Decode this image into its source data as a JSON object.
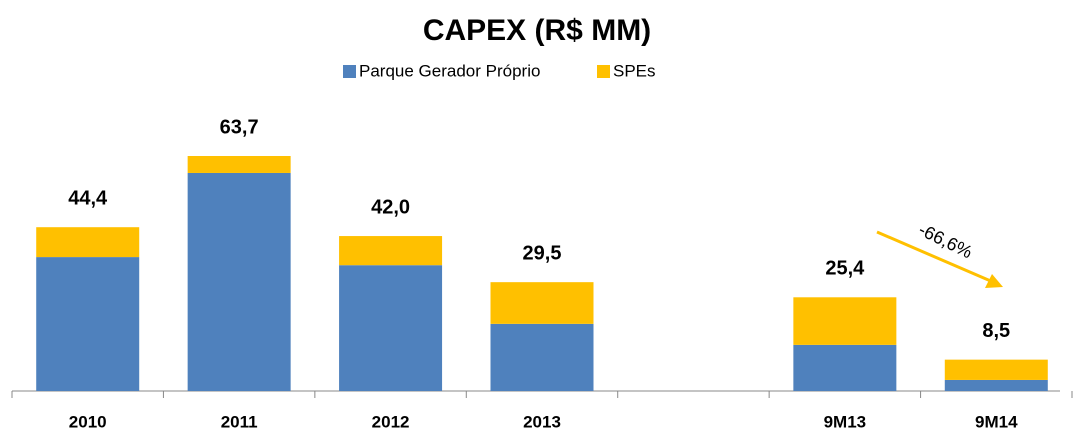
{
  "chart_data": {
    "type": "bar",
    "stacked": true,
    "title": "CAPEX (R$ MM)",
    "categories": [
      "2010",
      "2011",
      "2012",
      "2013",
      null,
      "9M13",
      "9M14"
    ],
    "series": [
      {
        "name": "Parque Gerador Próprio",
        "color": "#4f81bd",
        "values": [
          36.3,
          59.1,
          34.1,
          18.2,
          null,
          12.5,
          3.0
        ]
      },
      {
        "name": "SPEs",
        "color": "#ffc000",
        "values": [
          8.1,
          4.6,
          7.9,
          11.3,
          null,
          12.9,
          5.5
        ]
      }
    ],
    "totals": [
      44.4,
      63.7,
      42.0,
      29.5,
      null,
      25.4,
      8.5
    ],
    "total_labels": [
      "44,4",
      "63,7",
      "42,0",
      "29,5",
      null,
      "25,4",
      "8,5"
    ],
    "annotation": "-66,6%",
    "legend": "top"
  }
}
